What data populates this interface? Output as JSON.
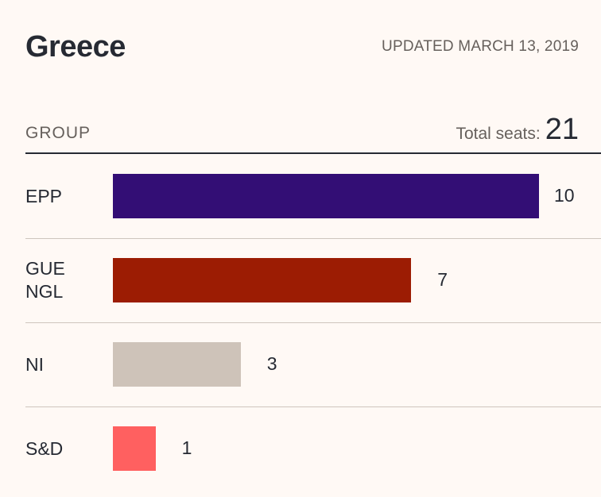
{
  "header": {
    "title": "Greece",
    "updated": "UPDATED MARCH 13, 2019",
    "column_label": "GROUP",
    "total_label": "Total seats:",
    "total_value": "21"
  },
  "chart_data": {
    "type": "bar",
    "orientation": "horizontal",
    "title": "Greece",
    "categories": [
      [
        "EPP"
      ],
      [
        "GUE",
        "NGL"
      ],
      [
        "NI"
      ],
      [
        "S&D"
      ]
    ],
    "values": [
      10,
      7,
      3,
      1
    ],
    "colors": [
      "#330e75",
      "#9c1c03",
      "#cec3b9",
      "#ff6060"
    ],
    "xlim": [
      0,
      10
    ],
    "grid": false,
    "legend": "none"
  }
}
